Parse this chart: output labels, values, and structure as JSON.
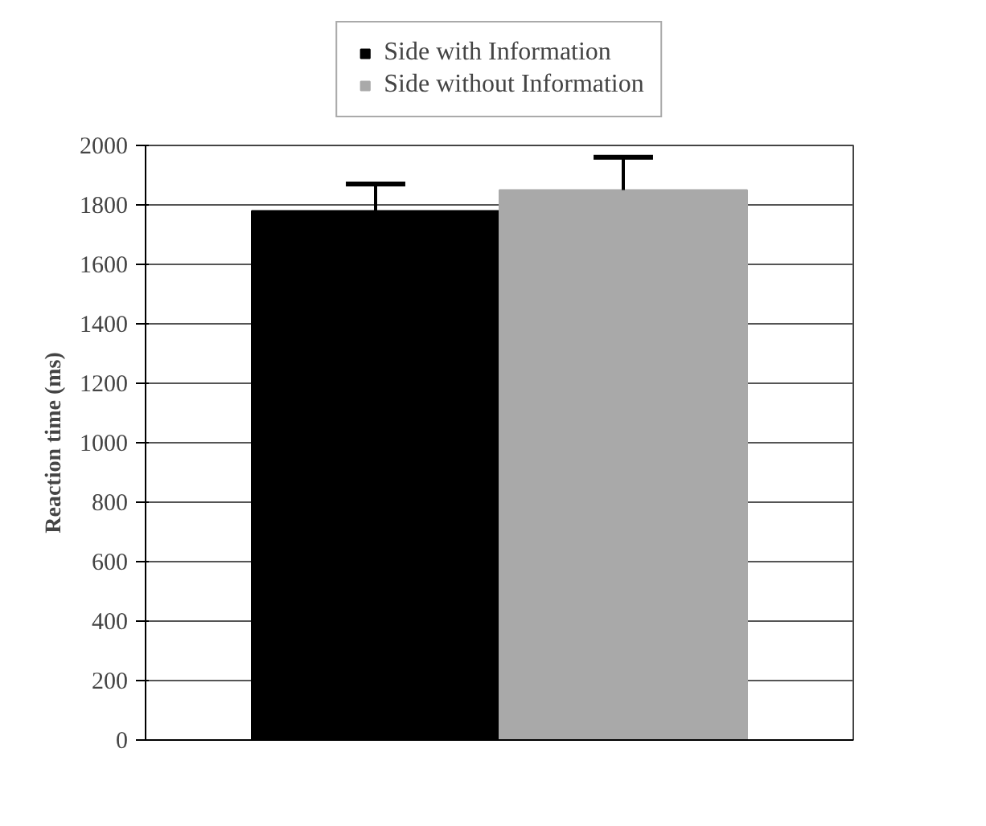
{
  "chart_data": {
    "type": "bar",
    "ylabel": "Reaction time (ms)",
    "categories": [
      null
    ],
    "series": [
      {
        "name": "Side with Information",
        "color": "#000000",
        "values": [
          1780
        ],
        "errors": [
          [
            1780,
            1870
          ]
        ]
      },
      {
        "name": "Side without Information",
        "color": "#a9a9a9",
        "values": [
          1850
        ],
        "errors": [
          [
            1850,
            1960
          ]
        ]
      }
    ],
    "ylim": [
      0,
      2000
    ],
    "yticks": [
      0,
      200,
      400,
      600,
      800,
      1000,
      1200,
      1400,
      1600,
      1800,
      2000
    ],
    "grid": "y",
    "legend": "top"
  }
}
